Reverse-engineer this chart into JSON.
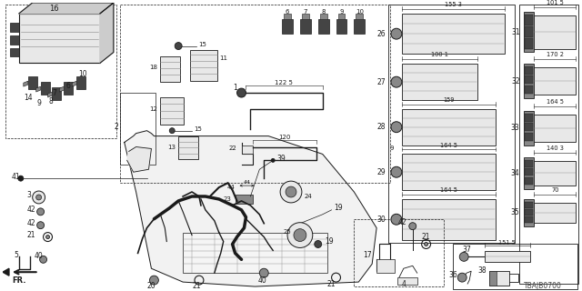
{
  "bg_color": "#ffffff",
  "line_color": "#1a1a1a",
  "gray_dark": "#444444",
  "gray_med": "#888888",
  "gray_light": "#cccccc",
  "gray_fill": "#e8e8e8",
  "diagram_id": "TBAJB0700",
  "fig_width": 6.4,
  "fig_height": 3.2,
  "dpi": 100
}
